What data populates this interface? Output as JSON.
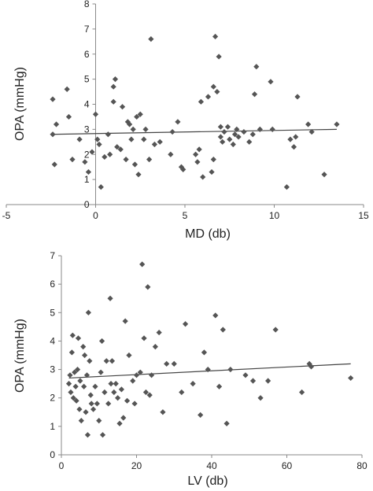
{
  "chart_data": [
    {
      "type": "scatter",
      "title": "",
      "xlabel": "MD (db)",
      "ylabel": "OPA (mmHg)",
      "xlim": [
        -5,
        15
      ],
      "ylim": [
        0,
        8
      ],
      "xticks": [
        "-5",
        "0",
        "5",
        "10",
        "15"
      ],
      "yticks": [
        "0",
        "1",
        "2",
        "3",
        "4",
        "5",
        "6",
        "7",
        "8"
      ],
      "grid": false,
      "legend": "none",
      "marker_color": "#555555",
      "trendline": {
        "x": [
          -2.5,
          13.5
        ],
        "y": [
          2.8,
          3.0
        ]
      },
      "points": [
        {
          "x": -2.4,
          "y": 4.2
        },
        {
          "x": -2.2,
          "y": 3.2
        },
        {
          "x": -2.4,
          "y": 2.8
        },
        {
          "x": -2.3,
          "y": 1.6
        },
        {
          "x": -1.6,
          "y": 4.6
        },
        {
          "x": -1.5,
          "y": 3.5
        },
        {
          "x": -1.3,
          "y": 1.8
        },
        {
          "x": -0.9,
          "y": 2.6
        },
        {
          "x": -0.6,
          "y": 1.7
        },
        {
          "x": -0.4,
          "y": 1.3
        },
        {
          "x": -0.2,
          "y": 2.1
        },
        {
          "x": 0.0,
          "y": 3.6
        },
        {
          "x": 0.1,
          "y": 2.6
        },
        {
          "x": 0.2,
          "y": 2.4
        },
        {
          "x": 0.3,
          "y": 0.7
        },
        {
          "x": 0.5,
          "y": 1.9
        },
        {
          "x": 0.7,
          "y": 2.8
        },
        {
          "x": 0.8,
          "y": 2.0
        },
        {
          "x": 1.0,
          "y": 4.7
        },
        {
          "x": 1.0,
          "y": 4.1
        },
        {
          "x": 1.1,
          "y": 5.0
        },
        {
          "x": 1.2,
          "y": 2.3
        },
        {
          "x": 1.4,
          "y": 2.2
        },
        {
          "x": 1.5,
          "y": 3.9
        },
        {
          "x": 1.7,
          "y": 1.8
        },
        {
          "x": 1.8,
          "y": 3.3
        },
        {
          "x": 1.9,
          "y": 3.2
        },
        {
          "x": 2.0,
          "y": 2.6
        },
        {
          "x": 2.1,
          "y": 3.0
        },
        {
          "x": 2.2,
          "y": 1.6
        },
        {
          "x": 2.3,
          "y": 3.5
        },
        {
          "x": 2.4,
          "y": 1.2
        },
        {
          "x": 2.5,
          "y": 3.6
        },
        {
          "x": 2.7,
          "y": 2.6
        },
        {
          "x": 2.8,
          "y": 3.0
        },
        {
          "x": 3.0,
          "y": 1.8
        },
        {
          "x": 3.1,
          "y": 6.6
        },
        {
          "x": 3.3,
          "y": 2.4
        },
        {
          "x": 3.6,
          "y": 2.5
        },
        {
          "x": 4.2,
          "y": 2.0
        },
        {
          "x": 4.3,
          "y": 2.9
        },
        {
          "x": 4.6,
          "y": 3.3
        },
        {
          "x": 4.8,
          "y": 1.5
        },
        {
          "x": 4.9,
          "y": 1.4
        },
        {
          "x": 5.6,
          "y": 2.0
        },
        {
          "x": 5.7,
          "y": 1.7
        },
        {
          "x": 5.8,
          "y": 2.2
        },
        {
          "x": 5.9,
          "y": 4.1
        },
        {
          "x": 6.0,
          "y": 1.1
        },
        {
          "x": 6.3,
          "y": 4.3
        },
        {
          "x": 6.5,
          "y": 1.3
        },
        {
          "x": 6.6,
          "y": 4.7
        },
        {
          "x": 6.6,
          "y": 1.8
        },
        {
          "x": 6.7,
          "y": 6.7
        },
        {
          "x": 6.8,
          "y": 4.5
        },
        {
          "x": 6.9,
          "y": 5.9
        },
        {
          "x": 7.0,
          "y": 3.1
        },
        {
          "x": 7.0,
          "y": 2.7
        },
        {
          "x": 7.1,
          "y": 2.5
        },
        {
          "x": 7.2,
          "y": 2.9
        },
        {
          "x": 7.4,
          "y": 3.1
        },
        {
          "x": 7.5,
          "y": 2.6
        },
        {
          "x": 7.7,
          "y": 2.4
        },
        {
          "x": 7.8,
          "y": 2.8
        },
        {
          "x": 7.9,
          "y": 3.0
        },
        {
          "x": 8.0,
          "y": 2.7
        },
        {
          "x": 8.3,
          "y": 2.9
        },
        {
          "x": 8.6,
          "y": 2.5
        },
        {
          "x": 8.8,
          "y": 2.8
        },
        {
          "x": 8.9,
          "y": 4.4
        },
        {
          "x": 9.0,
          "y": 5.5
        },
        {
          "x": 9.2,
          "y": 3.0
        },
        {
          "x": 9.8,
          "y": 4.9
        },
        {
          "x": 9.9,
          "y": 3.0
        },
        {
          "x": 10.7,
          "y": 0.7
        },
        {
          "x": 10.9,
          "y": 2.6
        },
        {
          "x": 11.1,
          "y": 2.3
        },
        {
          "x": 11.2,
          "y": 2.7
        },
        {
          "x": 11.3,
          "y": 4.3
        },
        {
          "x": 11.9,
          "y": 3.2
        },
        {
          "x": 12.1,
          "y": 2.9
        },
        {
          "x": 12.8,
          "y": 1.2
        },
        {
          "x": 13.5,
          "y": 3.2
        }
      ]
    },
    {
      "type": "scatter",
      "title": "",
      "xlabel": "LV (db)",
      "ylabel": "OPA (mmHg)",
      "xlim": [
        0,
        80
      ],
      "ylim": [
        0,
        7
      ],
      "xticks": [
        "0",
        "20",
        "40",
        "60",
        "80"
      ],
      "yticks": [
        "0",
        "1",
        "2",
        "3",
        "4",
        "5",
        "6",
        "7"
      ],
      "grid": false,
      "legend": "none",
      "marker_color": "#555555",
      "trendline": {
        "x": [
          2,
          77
        ],
        "y": [
          2.7,
          3.2
        ]
      },
      "points": [
        {
          "x": 2.0,
          "y": 2.5
        },
        {
          "x": 2.3,
          "y": 2.8
        },
        {
          "x": 2.5,
          "y": 2.2
        },
        {
          "x": 2.8,
          "y": 3.6
        },
        {
          "x": 3.0,
          "y": 4.2
        },
        {
          "x": 3.2,
          "y": 2.0
        },
        {
          "x": 3.5,
          "y": 2.9
        },
        {
          "x": 3.8,
          "y": 2.4
        },
        {
          "x": 4.0,
          "y": 1.9
        },
        {
          "x": 4.3,
          "y": 3.0
        },
        {
          "x": 4.5,
          "y": 4.1
        },
        {
          "x": 4.8,
          "y": 1.6
        },
        {
          "x": 5.0,
          "y": 2.6
        },
        {
          "x": 5.3,
          "y": 1.2
        },
        {
          "x": 5.8,
          "y": 3.8
        },
        {
          "x": 6.0,
          "y": 2.4
        },
        {
          "x": 6.2,
          "y": 3.5
        },
        {
          "x": 6.5,
          "y": 1.5
        },
        {
          "x": 6.8,
          "y": 2.8
        },
        {
          "x": 7.0,
          "y": 0.7
        },
        {
          "x": 7.2,
          "y": 5.0
        },
        {
          "x": 7.5,
          "y": 3.3
        },
        {
          "x": 7.8,
          "y": 2.1
        },
        {
          "x": 8.0,
          "y": 1.8
        },
        {
          "x": 8.5,
          "y": 1.6
        },
        {
          "x": 9.0,
          "y": 2.4
        },
        {
          "x": 9.5,
          "y": 1.8
        },
        {
          "x": 10.0,
          "y": 1.2
        },
        {
          "x": 10.5,
          "y": 2.9
        },
        {
          "x": 10.8,
          "y": 4.0
        },
        {
          "x": 11.0,
          "y": 0.7
        },
        {
          "x": 11.5,
          "y": 2.2
        },
        {
          "x": 12.0,
          "y": 3.3
        },
        {
          "x": 12.5,
          "y": 1.8
        },
        {
          "x": 13.0,
          "y": 5.5
        },
        {
          "x": 13.2,
          "y": 2.5
        },
        {
          "x": 13.5,
          "y": 3.3
        },
        {
          "x": 14.0,
          "y": 2.2
        },
        {
          "x": 14.5,
          "y": 2.5
        },
        {
          "x": 15.0,
          "y": 2.0
        },
        {
          "x": 15.5,
          "y": 1.1
        },
        {
          "x": 16.0,
          "y": 2.3
        },
        {
          "x": 16.5,
          "y": 1.3
        },
        {
          "x": 17.0,
          "y": 4.7
        },
        {
          "x": 17.5,
          "y": 1.9
        },
        {
          "x": 18.0,
          "y": 3.5
        },
        {
          "x": 19.0,
          "y": 2.6
        },
        {
          "x": 19.5,
          "y": 1.8
        },
        {
          "x": 20.0,
          "y": 2.8
        },
        {
          "x": 21.0,
          "y": 2.9
        },
        {
          "x": 21.5,
          "y": 6.7
        },
        {
          "x": 22.0,
          "y": 4.1
        },
        {
          "x": 22.5,
          "y": 2.2
        },
        {
          "x": 23.0,
          "y": 5.9
        },
        {
          "x": 23.5,
          "y": 2.1
        },
        {
          "x": 24.0,
          "y": 2.8
        },
        {
          "x": 25.0,
          "y": 3.8
        },
        {
          "x": 26.0,
          "y": 4.3
        },
        {
          "x": 27.0,
          "y": 1.5
        },
        {
          "x": 28.0,
          "y": 3.2
        },
        {
          "x": 30.0,
          "y": 3.2
        },
        {
          "x": 32.0,
          "y": 2.2
        },
        {
          "x": 33.0,
          "y": 4.6
        },
        {
          "x": 35.0,
          "y": 2.5
        },
        {
          "x": 37.0,
          "y": 1.4
        },
        {
          "x": 38.0,
          "y": 3.6
        },
        {
          "x": 39.0,
          "y": 3.0
        },
        {
          "x": 41.0,
          "y": 4.9
        },
        {
          "x": 42.0,
          "y": 2.4
        },
        {
          "x": 43.0,
          "y": 4.4
        },
        {
          "x": 44.0,
          "y": 1.1
        },
        {
          "x": 45.0,
          "y": 3.0
        },
        {
          "x": 49.0,
          "y": 2.8
        },
        {
          "x": 51.0,
          "y": 2.6
        },
        {
          "x": 53.0,
          "y": 2.0
        },
        {
          "x": 55.0,
          "y": 2.6
        },
        {
          "x": 57.0,
          "y": 4.4
        },
        {
          "x": 64.0,
          "y": 2.2
        },
        {
          "x": 66.0,
          "y": 3.2
        },
        {
          "x": 66.5,
          "y": 3.1
        },
        {
          "x": 77.0,
          "y": 2.7
        }
      ]
    }
  ]
}
